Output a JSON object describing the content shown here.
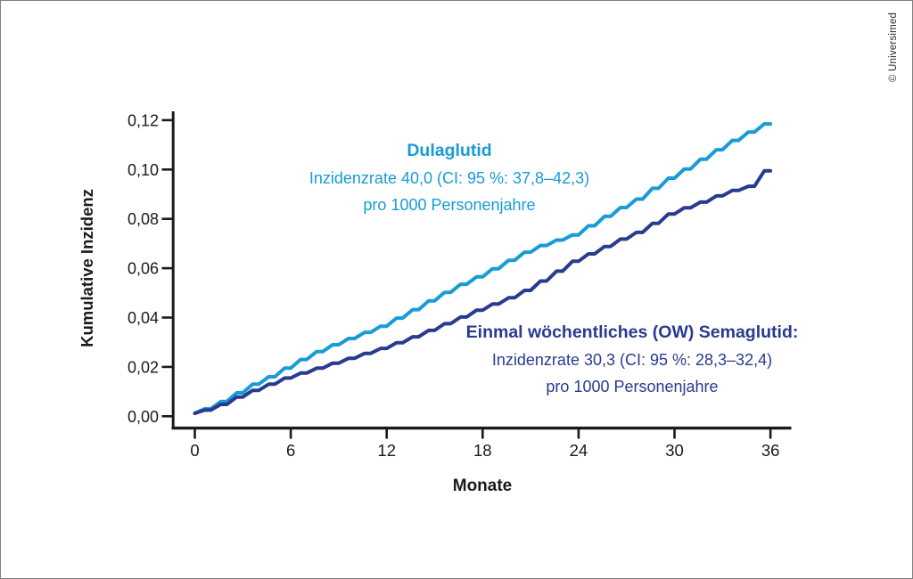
{
  "credit": "© Universimed",
  "annotations": {
    "dulaglutid": {
      "title": "Dulaglutid",
      "line2": "Inzidenzrate 40,0 (CI: 95 %: 37,8–42,3)",
      "line3": "pro 1000 Personenjahre"
    },
    "semaglutid": {
      "title": "Einmal wöchentliches (OW) Semaglutid:",
      "line2": "Inzidenzrate 30,3 (CI: 95 %: 28,3–32,4)",
      "line3": "pro 1000 Personenjahre"
    }
  },
  "chart_data": {
    "type": "line",
    "title": "",
    "xlabel": "Monate",
    "ylabel": "Kumulative Inzidenz",
    "axis_color": "#1a1a1a",
    "grid": false,
    "legend_position": "none (colored inline annotations)",
    "xlim": [
      0,
      37.3
    ],
    "ylim": [
      0,
      0.125
    ],
    "x_ticks": [
      0,
      6,
      12,
      18,
      24,
      30,
      36
    ],
    "x_tick_labels": [
      "0",
      "6",
      "12",
      "18",
      "24",
      "30",
      "36"
    ],
    "y_ticks": [
      0.12,
      0.1,
      0.08,
      0.06,
      0.04,
      0.02,
      0.0
    ],
    "y_tick_labels": [
      "0,12",
      "0,10",
      "0,08",
      "0,06",
      "0,04",
      "0,02",
      "0,00"
    ],
    "months": [
      0,
      1,
      2,
      3,
      4,
      5,
      6,
      7,
      8,
      9,
      10,
      11,
      12,
      13,
      14,
      15,
      16,
      17,
      18,
      19,
      20,
      21,
      22,
      23,
      24,
      25,
      26,
      27,
      28,
      29,
      30,
      31,
      32,
      33,
      34,
      35,
      36
    ],
    "series": [
      {
        "name": "Dulaglutid",
        "color": "#189BD7",
        "incidence_rate": "40,0 (CI: 95 %: 37,8–42,3) pro 1000 Personenjahre",
        "values": [
          0.0012,
          0.003,
          0.006,
          0.0095,
          0.013,
          0.016,
          0.0195,
          0.023,
          0.0262,
          0.029,
          0.0315,
          0.034,
          0.0365,
          0.0398,
          0.0432,
          0.0468,
          0.0502,
          0.0535,
          0.0565,
          0.0598,
          0.0632,
          0.0665,
          0.0692,
          0.0714,
          0.0735,
          0.0772,
          0.081,
          0.0846,
          0.088,
          0.0924,
          0.0965,
          0.1002,
          0.1042,
          0.108,
          0.1118,
          0.1152,
          0.1185
        ]
      },
      {
        "name": "Einmal wöchentliches (OW) Semaglutid",
        "color": "#293B8E",
        "incidence_rate": "30,3 (CI: 95 %: 28,3–32,4) pro 1000 Personenjahre",
        "values": [
          0.0012,
          0.0025,
          0.0048,
          0.0078,
          0.0105,
          0.013,
          0.0155,
          0.0175,
          0.0195,
          0.0215,
          0.0235,
          0.0255,
          0.0275,
          0.0298,
          0.0322,
          0.0348,
          0.0375,
          0.0402,
          0.043,
          0.0455,
          0.048,
          0.051,
          0.0548,
          0.0588,
          0.0628,
          0.0658,
          0.0688,
          0.0718,
          0.0745,
          0.0782,
          0.082,
          0.0845,
          0.0868,
          0.0893,
          0.0915,
          0.0932,
          0.0995
        ]
      }
    ]
  }
}
